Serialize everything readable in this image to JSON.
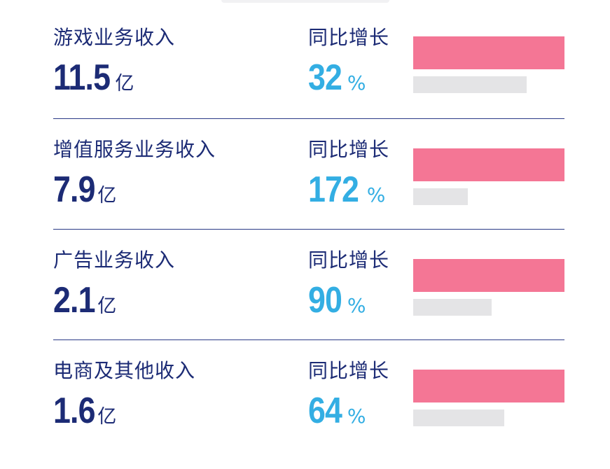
{
  "chart_data": {
    "type": "bar",
    "categories": [
      "游戏业务收入",
      "增值服务业务收入",
      "广告业务收入",
      "电商及其他收入"
    ],
    "values": [
      11.5,
      7.9,
      2.1,
      1.6
    ],
    "unit": "亿",
    "growth_label": "同比增长",
    "growth_percent": [
      32,
      172,
      90,
      64
    ],
    "gray_bar_fraction": [
      0.75,
      0.36,
      0.52,
      0.6
    ],
    "colors": {
      "label": "#1c2b75",
      "growth": "#33aee3",
      "bar_current": "#f47695",
      "bar_prior": "#e4e4e6",
      "divider": "#2a3a86"
    }
  },
  "rows": [
    {
      "label": "游戏业务收入",
      "value": "11.5",
      "unit": "亿",
      "growth_label": "同比增长",
      "growth": "32",
      "pct": "%"
    },
    {
      "label": "增值服务业务收入",
      "value": "7.9",
      "unit": "亿",
      "growth_label": "同比增长",
      "growth": "172",
      "pct": "%"
    },
    {
      "label": "广告业务收入",
      "value": "2.1",
      "unit": "亿",
      "growth_label": "同比增长",
      "growth": "90",
      "pct": "%"
    },
    {
      "label": "电商及其他收入",
      "value": "1.6",
      "unit": "亿",
      "growth_label": "同比增长",
      "growth": "64",
      "pct": "%"
    }
  ]
}
